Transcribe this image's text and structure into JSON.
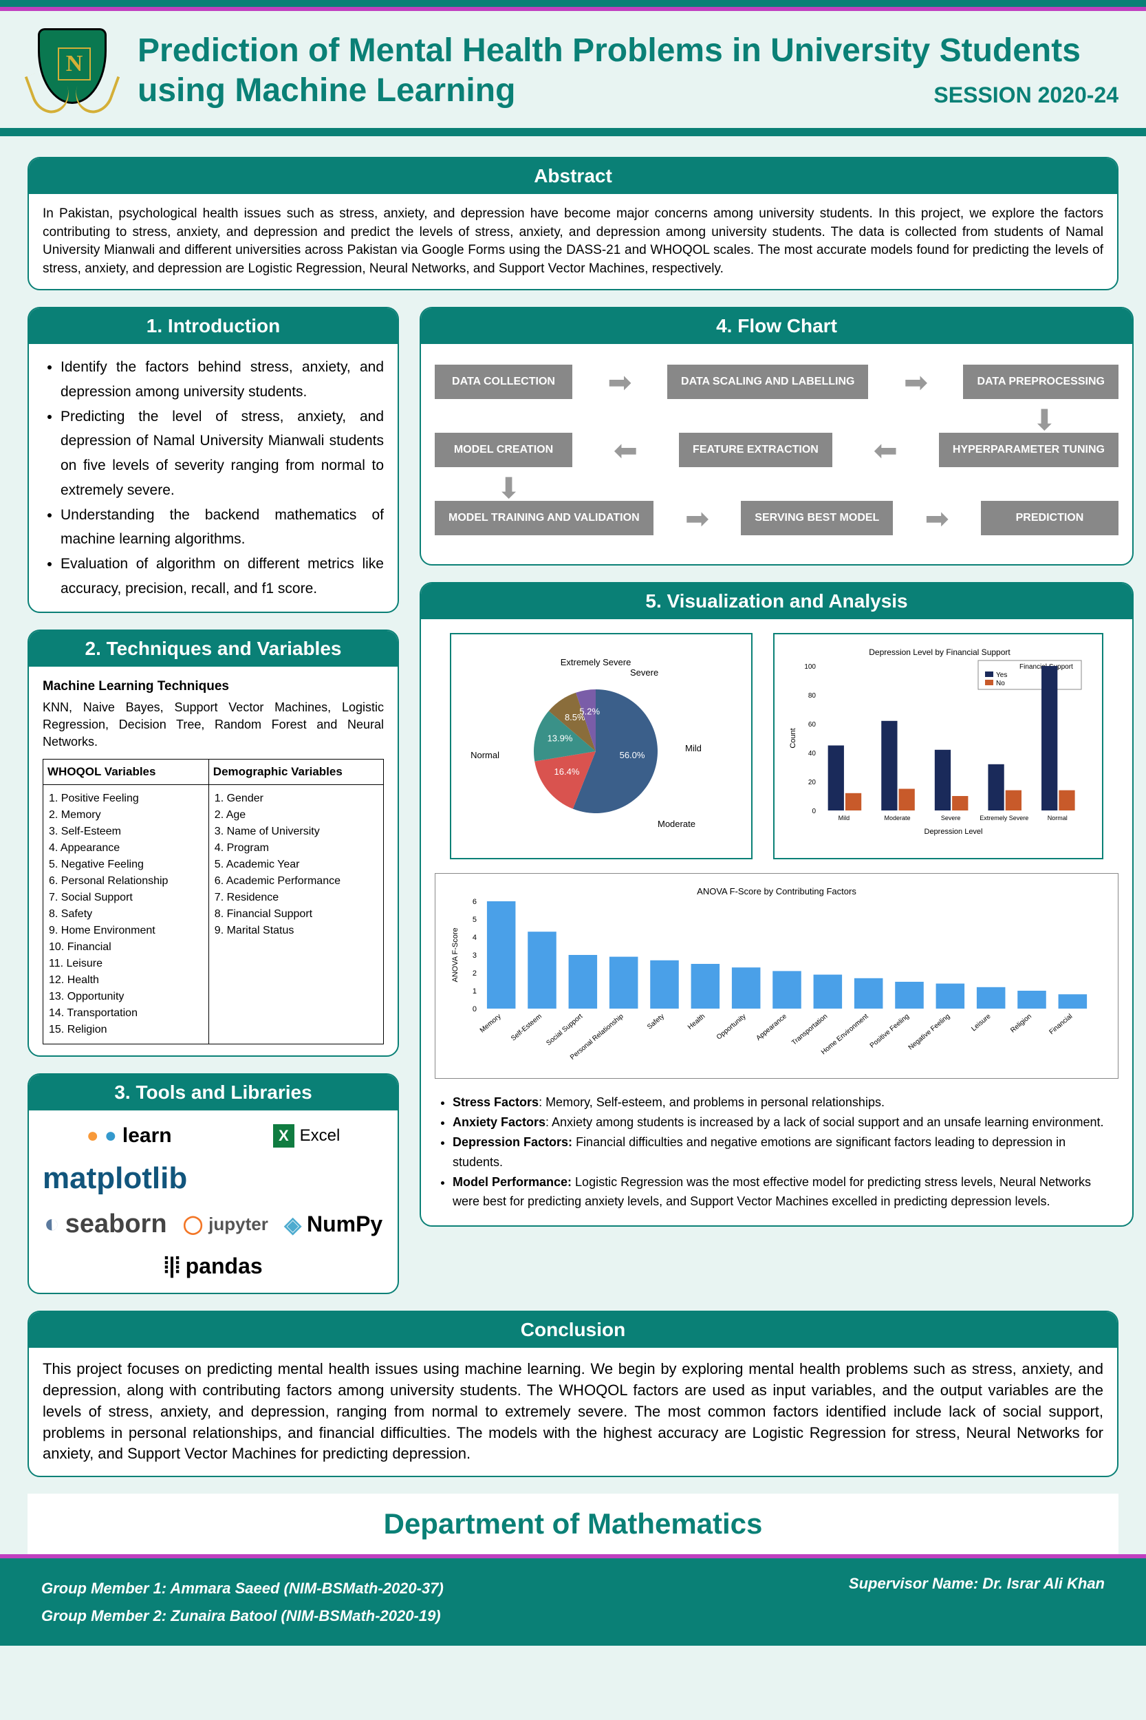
{
  "header": {
    "title": "Prediction of Mental Health Problems in University Students using Machine Learning",
    "session": "SESSION 2020-24",
    "logo_letter": "N"
  },
  "abstract": {
    "heading": "Abstract",
    "text": "In Pakistan, psychological health issues such as stress, anxiety, and depression have become major concerns among university students. In this project, we explore the factors contributing to stress, anxiety, and depression and predict the levels of stress, anxiety, and depression among university students. The data is collected from students of Namal University Mianwali and different universities across Pakistan via Google Forms using the DASS-21 and WHOQOL scales. The most accurate models found for predicting the levels of stress, anxiety, and depression are Logistic Regression, Neural Networks, and Support Vector Machines, respectively."
  },
  "introduction": {
    "heading": "1. Introduction",
    "items": [
      "Identify the factors behind stress, anxiety, and depression among university students.",
      "Predicting the level of stress, anxiety, and depression of Namal University Mianwali students on five levels of severity ranging from normal to extremely severe.",
      "Understanding the backend mathematics of machine learning algorithms.",
      "Evaluation of algorithm on different metrics like accuracy, precision, recall, and f1 score."
    ]
  },
  "techniques": {
    "heading": "2. Techniques and Variables",
    "sub_heading": "Machine Learning Techniques",
    "tech_list": "KNN, Naive Bayes, Support Vector Machines, Logistic Regression, Decision Tree, Random Forest and Neural Networks.",
    "col1_head": "WHOQOL Variables",
    "col2_head": "Demographic Variables",
    "col1_items": "1. Positive Feeling\n2. Memory\n3. Self-Esteem\n4. Appearance\n5. Negative Feeling\n6. Personal Relationship\n7. Social Support\n8. Safety\n9. Home Environment\n10. Financial\n11. Leisure\n12. Health\n13. Opportunity\n14. Transportation\n15. Religion",
    "col2_items": "1. Gender\n2. Age\n3. Name of University\n4. Program\n5. Academic Year\n6. Academic Performance\n7. Residence\n8. Financial Support\n9. Marital Status"
  },
  "tools": {
    "heading": "3. Tools and Libraries",
    "items": [
      "learn",
      "Excel",
      "matplotlib",
      "seaborn",
      "jupyter",
      "NumPy",
      "pandas"
    ]
  },
  "flowchart": {
    "heading": "4. Flow Chart",
    "nodes": {
      "n1": "DATA COLLECTION",
      "n2": "DATA SCALING AND LABELLING",
      "n3": "DATA PREPROCESSING",
      "n4": "MODEL CREATION",
      "n5": "FEATURE EXTRACTION",
      "n6": "HYPERPARAMETER TUNING",
      "n7": "MODEL TRAINING AND VALIDATION",
      "n8": "SERVING BEST MODEL",
      "n9": "PREDICTION"
    }
  },
  "viz": {
    "heading": "5. Visualization and Analysis",
    "pie": {
      "type": "pie",
      "slices": [
        {
          "label": "Normal",
          "value": 56.0,
          "color": "#3b5f8a"
        },
        {
          "label": "Moderate",
          "value": 16.4,
          "color": "#d9534f"
        },
        {
          "label": "Mild",
          "value": 13.9,
          "color": "#3a9188"
        },
        {
          "label": "Severe",
          "value": 8.5,
          "color": "#8a6d3b"
        },
        {
          "label": "Extremely Severe",
          "value": 5.2,
          "color": "#7a5da8"
        }
      ],
      "label_normal": "Normal",
      "label_moderate": "Moderate",
      "label_mild": "Mild",
      "label_severe": "Severe",
      "label_extreme": "Extremely Severe"
    },
    "bar": {
      "type": "grouped_bar",
      "title": "Depression Level by Financial Support",
      "ylabel": "Count",
      "xlabel": "Depression Level",
      "legend_title": "Financial Support",
      "legend_items": [
        "Yes",
        "No"
      ],
      "categories": [
        "Mild",
        "Moderate",
        "Severe",
        "Extremely Severe",
        "Normal"
      ],
      "yes_values": [
        45,
        62,
        42,
        32,
        105
      ],
      "no_values": [
        12,
        15,
        10,
        14,
        14
      ],
      "yes_color": "#1a2a5a",
      "no_color": "#c85a2a",
      "ylim": [
        0,
        100
      ],
      "ytick_step": 20
    },
    "anova": {
      "type": "bar",
      "title": "ANOVA F-Score by Contributing Factors",
      "ylabel": "ANOVA F-Score",
      "categories": [
        "Memory",
        "Self-Esteem",
        "Social Support",
        "Personal Relationship",
        "Safety",
        "Health",
        "Opportunity",
        "Appearance",
        "Transportation",
        "Home Environment",
        "Positive Feeling",
        "Negative Feeling",
        "Leisure",
        "Religion",
        "Financial"
      ],
      "values": [
        6.0,
        4.3,
        3.0,
        2.9,
        2.7,
        2.5,
        2.3,
        2.1,
        1.9,
        1.7,
        1.5,
        1.4,
        1.2,
        1.0,
        0.8
      ],
      "bar_color": "#4aa0e8",
      "ylim": [
        0,
        6
      ]
    },
    "findings": [
      {
        "b": "Stress Factors",
        "t": ": Memory, Self-esteem, and problems in personal relationships."
      },
      {
        "b": "Anxiety Factors",
        "t": ": Anxiety among students is increased by a lack of social support and an unsafe learning environment."
      },
      {
        "b": "Depression Factors:",
        "t": " Financial difficulties and negative emotions are significant factors leading to depression in students."
      },
      {
        "b": "Model Performance:",
        "t": " Logistic Regression was the most effective model for predicting stress levels, Neural Networks were best for predicting anxiety levels, and Support Vector Machines excelled in predicting depression levels."
      }
    ]
  },
  "conclusion": {
    "heading": "Conclusion",
    "text": "This project focuses on predicting mental health issues using machine learning. We begin by exploring mental health problems such as stress, anxiety, and depression, along with contributing factors among university students. The WHOQOL factors are used as input variables, and the output variables are the levels of stress, anxiety, and depression, ranging from normal to extremely severe. The most common factors identified include lack of social support, problems in personal relationships, and financial difficulties. The models with the highest accuracy are Logistic Regression for stress, Neural Networks for anxiety, and Support Vector Machines for predicting depression."
  },
  "footer": {
    "dept": "Department of Mathematics",
    "member1": "Group Member 1:  Ammara Saeed  (NIM-BSMath-2020-37)",
    "member2": "Group Member 2:  Zunaira Batool  (NIM-BSMath-2020-19)",
    "supervisor": "Supervisor Name:  Dr. Israr Ali Khan"
  }
}
